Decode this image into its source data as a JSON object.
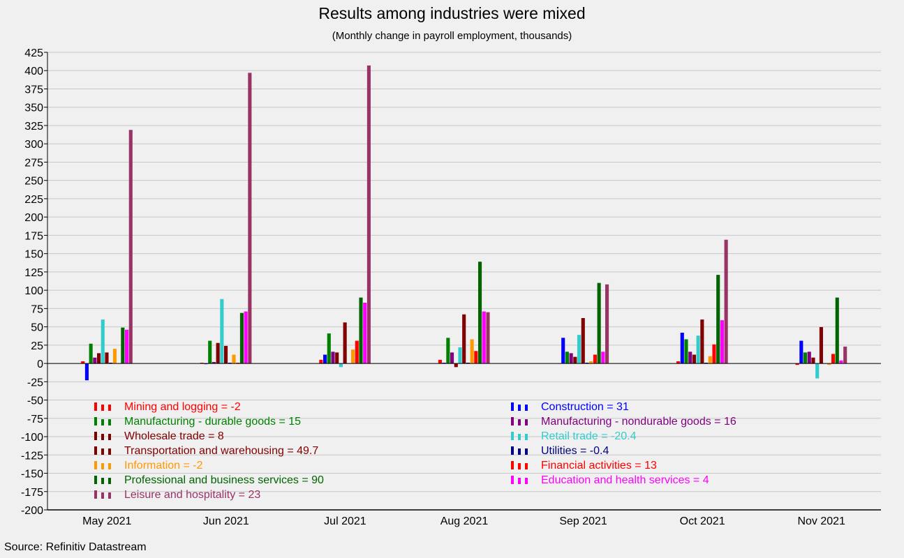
{
  "title": "Results among industries were mixed",
  "subtitle": "(Monthly change in payroll employment, thousands)",
  "source": "Source: Refinitiv Datastream",
  "chart_data": {
    "type": "bar",
    "categories": [
      "May 2021",
      "Jun 2021",
      "Jul 2021",
      "Aug 2021",
      "Sep 2021",
      "Oct 2021",
      "Nov 2021"
    ],
    "ylim": [
      -200,
      425
    ],
    "ytick_step": 25,
    "grid": true,
    "legend_position": "lower-inside",
    "series": [
      {
        "legend": "Mining and logging   = -2",
        "color": "#ff0000",
        "values": [
          3,
          1,
          5,
          5,
          0,
          3,
          -2
        ]
      },
      {
        "legend": "Construction   = 31",
        "color": "#0000ff",
        "values": [
          -23,
          -1,
          12,
          1,
          35,
          42,
          31
        ]
      },
      {
        "legend": "Manufacturing - durable goods  = 15",
        "color": "#008000",
        "values": [
          27,
          31,
          41,
          35,
          16,
          33,
          15
        ]
      },
      {
        "legend": "Manufacturing - nondurable goods = 16",
        "color": "#800080",
        "values": [
          8,
          2,
          16,
          15,
          14,
          16,
          16
        ]
      },
      {
        "legend": "Wholesale trade = 8",
        "color": "#800000",
        "values": [
          14,
          28,
          15,
          -5,
          9,
          12,
          8
        ]
      },
      {
        "legend": "Retail trade = -20.4",
        "color": "#33cccc",
        "values": [
          60,
          88,
          -5,
          22,
          39,
          38,
          -20.4
        ]
      },
      {
        "legend": "Transportation and warehousing = 49.7",
        "color": "#800000",
        "values": [
          15,
          24,
          56,
          67,
          62,
          60,
          49.7
        ]
      },
      {
        "legend": "Utilities = -0.4",
        "color": "#000080",
        "values": [
          1,
          1,
          0,
          1,
          1,
          1,
          -0.4
        ]
      },
      {
        "legend": "Information = -2",
        "color": "#ff9900",
        "values": [
          20,
          12,
          19,
          33,
          3,
          10,
          -2
        ]
      },
      {
        "legend": "Financial activities = 13",
        "color": "#ff0000",
        "values": [
          0,
          1,
          31,
          17,
          12,
          26,
          13
        ]
      },
      {
        "legend": "Professional and business services = 90",
        "color": "#006400",
        "values": [
          49,
          69,
          90,
          139,
          110,
          121,
          90
        ]
      },
      {
        "legend": "Education and health services = 4",
        "color": "#ff00ff",
        "values": [
          46,
          71,
          83,
          71,
          16,
          59,
          4
        ]
      },
      {
        "legend": "Leisure and hospitality = 23",
        "color": "#993366",
        "values": [
          319,
          397,
          407,
          70,
          108,
          169,
          23
        ]
      }
    ],
    "legend_order_left": [
      0,
      2,
      4,
      6,
      8,
      10,
      12
    ],
    "legend_order_right": [
      1,
      3,
      5,
      7,
      9,
      11
    ]
  }
}
